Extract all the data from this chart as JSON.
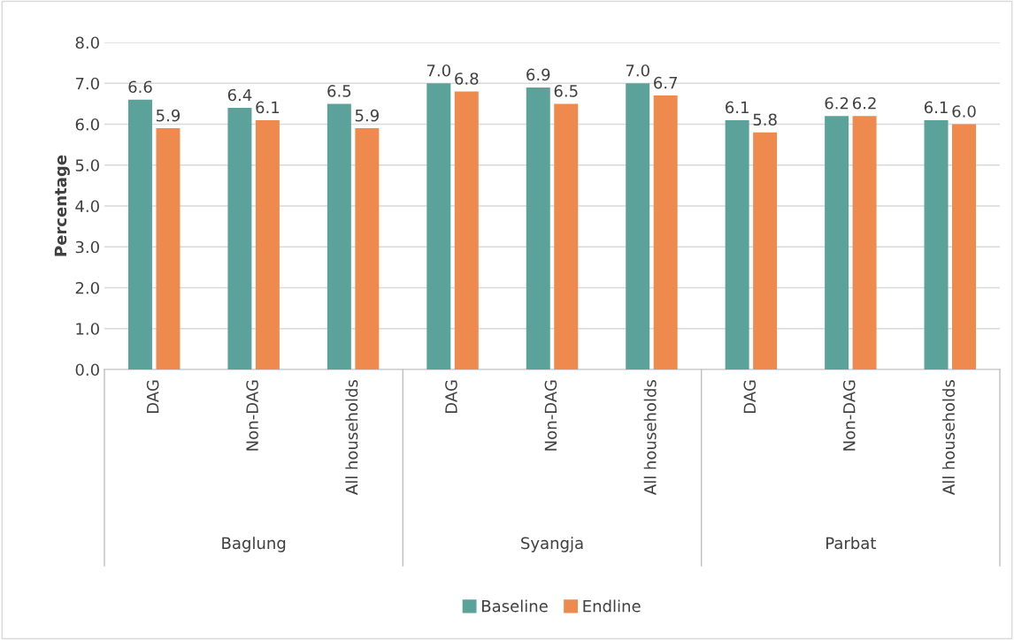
{
  "chart_data": {
    "type": "bar",
    "ylabel": "Percentage",
    "categories": [
      "DAG",
      "Non-DAG",
      "All households",
      "DAG",
      "Non-DAG",
      "All households",
      "DAG",
      "Non-DAG",
      "All households"
    ],
    "annotations": [
      "Baglung",
      "Syangja",
      "Parbat"
    ],
    "series": [
      {
        "name": "Baseline",
        "color": "#5ba39a",
        "values": [
          6.6,
          6.4,
          6.5,
          7.0,
          6.9,
          7.0,
          6.1,
          6.2,
          6.1
        ],
        "value_labels": [
          "6.6",
          "6.4",
          "6.5",
          "7.0",
          "6.9",
          "7.0",
          "6.1",
          "6.2",
          "6.1"
        ]
      },
      {
        "name": "Endline",
        "color": "#ee8a4d",
        "values": [
          5.9,
          6.1,
          5.9,
          6.8,
          6.5,
          6.7,
          5.8,
          6.2,
          6.0
        ],
        "value_labels": [
          "5.9",
          "6.1",
          "5.9",
          "6.8",
          "6.5",
          "6.7",
          "5.8",
          "6.2",
          "6.0"
        ]
      }
    ],
    "ylim": [
      0,
      8
    ],
    "yticks": [
      {
        "value": 0,
        "label": "0.0"
      },
      {
        "value": 1,
        "label": "1.0"
      },
      {
        "value": 2,
        "label": "2.0"
      },
      {
        "value": 3,
        "label": "3.0"
      },
      {
        "value": 4,
        "label": "4.0"
      },
      {
        "value": 5,
        "label": "5.0"
      },
      {
        "value": 6,
        "label": "6.0"
      },
      {
        "value": 7,
        "label": "7.0"
      },
      {
        "value": 8,
        "label": "8.0"
      }
    ],
    "grid": "y",
    "legend": "bottom"
  }
}
